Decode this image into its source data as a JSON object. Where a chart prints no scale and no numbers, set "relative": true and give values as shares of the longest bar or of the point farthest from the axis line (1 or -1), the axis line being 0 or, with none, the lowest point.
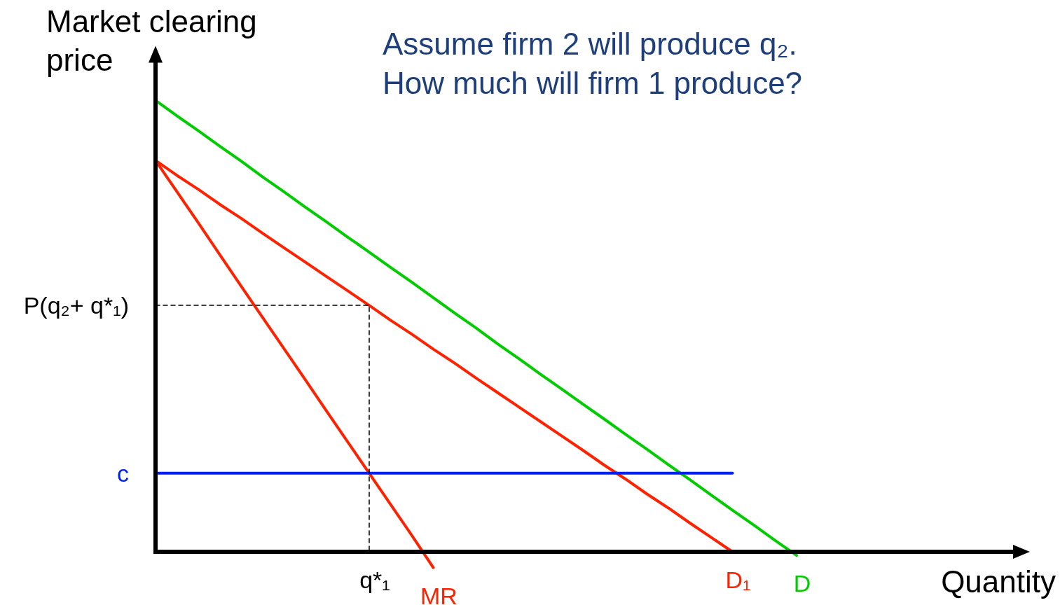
{
  "chart_data": {
    "type": "line",
    "relative": true,
    "title": "Assume firm 2 will produce q₂.\nHow much will firm 1 produce?",
    "xlabel": "Quantity",
    "ylabel": "Market clearing\nprice",
    "categories": [
      null,
      null,
      null,
      null,
      null,
      null,
      null,
      null,
      null,
      null,
      null,
      null,
      null,
      null,
      null,
      null,
      null,
      null,
      null,
      null,
      null,
      null,
      null,
      null,
      null,
      null,
      null,
      null,
      null,
      null,
      null,
      null,
      null,
      null,
      null,
      null,
      null,
      null,
      null,
      null,
      null
    ],
    "series": [
      {
        "name": "D",
        "color": "#00cc00",
        "values": [
          1.0,
          0.966,
          0.933,
          0.899,
          0.866,
          0.831,
          0.798,
          0.764,
          0.731,
          0.697,
          0.664,
          0.63,
          0.597,
          0.563,
          0.529,
          0.496,
          0.461,
          0.428,
          0.394,
          0.361,
          0.327,
          0.294,
          0.26,
          0.227,
          0.193,
          0.16,
          0.126,
          0.092,
          0.059,
          0.025,
          -0.008,
          null,
          null,
          null,
          null,
          null,
          null,
          null,
          null,
          null,
          null
        ]
      },
      {
        "name": "D₁",
        "color": "#ff2200",
        "values": [
          0.867,
          0.834,
          0.803,
          0.77,
          0.739,
          0.706,
          0.674,
          0.642,
          0.61,
          0.578,
          0.546,
          0.513,
          0.482,
          0.449,
          0.418,
          0.385,
          0.353,
          0.321,
          0.289,
          0.257,
          0.225,
          0.192,
          0.161,
          0.128,
          0.097,
          0.064,
          0.032,
          0.0,
          null,
          null,
          null,
          null,
          null,
          null,
          null,
          null,
          null,
          null,
          null,
          null,
          null
        ]
      },
      {
        "name": "MR",
        "color": "#ff2200",
        "values": [
          0.867,
          0.798,
          0.729,
          0.659,
          0.589,
          0.52,
          0.451,
          0.382,
          0.312,
          0.243,
          0.174,
          0.105,
          0.036,
          -0.035,
          null,
          null,
          null,
          null,
          null,
          null,
          null,
          null,
          null,
          null,
          null,
          null,
          null,
          null,
          null,
          null,
          null,
          null,
          null,
          null,
          null,
          null,
          null,
          null,
          null,
          null,
          null
        ]
      },
      {
        "name": "c",
        "color": "#0022ee",
        "values": [
          0.174,
          0.174,
          0.174,
          0.174,
          0.174,
          0.174,
          0.174,
          0.174,
          0.174,
          0.174,
          0.174,
          0.174,
          0.174,
          0.174,
          0.174,
          0.174,
          0.174,
          0.174,
          0.174,
          0.174,
          0.174,
          0.174,
          0.174,
          0.174,
          0.174,
          0.174,
          0.174,
          0.174,
          null,
          null,
          null,
          null,
          null,
          null,
          null,
          null,
          null,
          null,
          null,
          null,
          null
        ]
      },
      {
        "name": "q*₁",
        "type": "step",
        "color": "#000000",
        "line_style": "dashed",
        "values": [
          0.546,
          0.546,
          0.546,
          0.546,
          0.546,
          0.546,
          0.546,
          0.546,
          0.546,
          0.546,
          0,
          null,
          null,
          null,
          null,
          null,
          null,
          null,
          null,
          null,
          null,
          null,
          null,
          null,
          null,
          null,
          null,
          null,
          null,
          null,
          null,
          null,
          null,
          null,
          null,
          null,
          null,
          null,
          null,
          null,
          null
        ]
      }
    ],
    "annotations": [
      "P(q₂+ q*₁)"
    ]
  }
}
